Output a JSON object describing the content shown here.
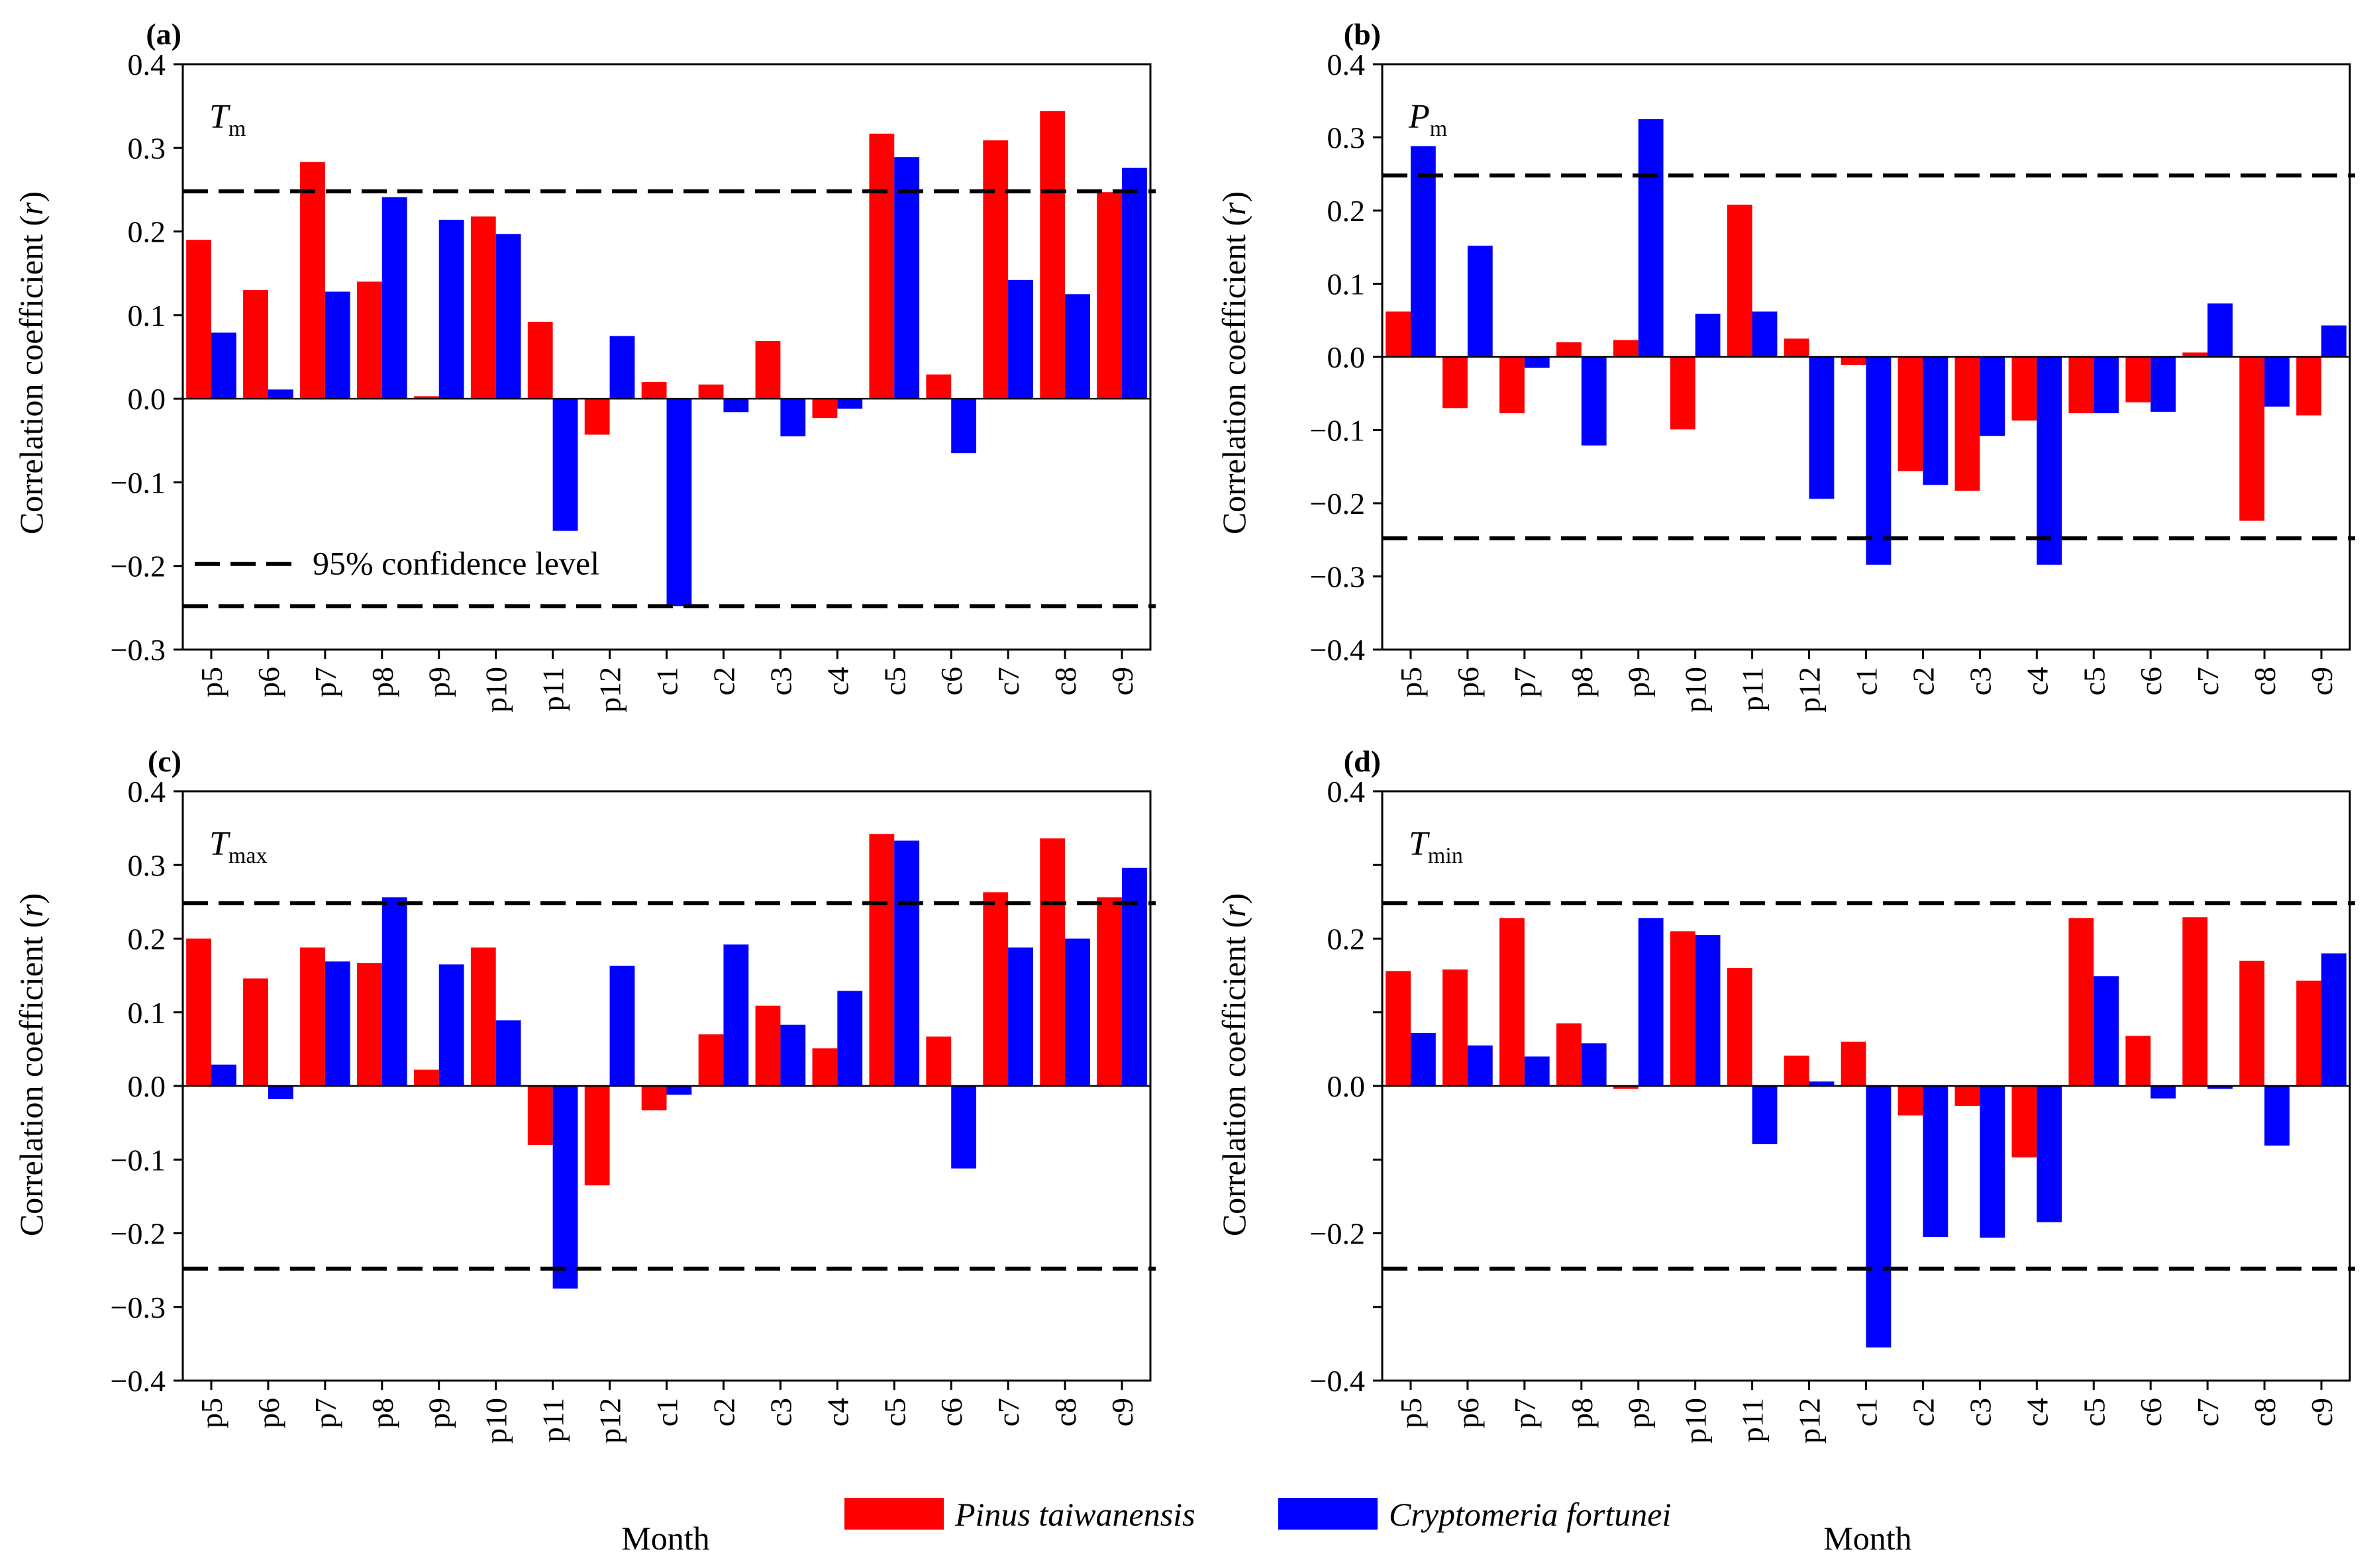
{
  "chart_data": [
    {
      "type": "bar",
      "panel": "(a)",
      "variable": {
        "symbol": "T",
        "subscript": "m"
      },
      "categories": [
        "p5",
        "p6",
        "p7",
        "p8",
        "p9",
        "p10",
        "p11",
        "p12",
        "c1",
        "c2",
        "c3",
        "c4",
        "c5",
        "c6",
        "c7",
        "c8",
        "c9"
      ],
      "series": [
        {
          "name": "Pinus taiwanensis",
          "color": "#ff0000",
          "values": [
            0.19,
            0.13,
            0.283,
            0.14,
            0.003,
            0.218,
            0.092,
            -0.043,
            0.02,
            0.017,
            0.069,
            -0.023,
            0.317,
            0.029,
            0.309,
            0.344,
            0.247
          ]
        },
        {
          "name": "Cryptomeria fortunei",
          "color": "#0000ff",
          "values": [
            0.079,
            0.011,
            0.128,
            0.241,
            0.214,
            0.197,
            -0.158,
            0.075,
            -0.248,
            -0.016,
            -0.045,
            -0.012,
            0.289,
            -0.065,
            0.142,
            0.125,
            0.276
          ]
        }
      ],
      "ylim": [
        -0.3,
        0.4
      ],
      "yticks": [
        "0.4",
        "0.3",
        "0.2",
        "0.1",
        "0.0",
        "-0.1",
        "-0.2",
        "-0.3"
      ],
      "confidence_level": 0.248,
      "annotation": "95% confidence level",
      "ylabel": "Correlation coefficient (r)",
      "xlabel": ""
    },
    {
      "type": "bar",
      "panel": "(b)",
      "variable": {
        "symbol": "P",
        "subscript": "m"
      },
      "categories": [
        "p5",
        "p6",
        "p7",
        "p8",
        "p9",
        "p10",
        "p11",
        "p12",
        "c1",
        "c2",
        "c3",
        "c4",
        "c5",
        "c6",
        "c7",
        "c8",
        "c9"
      ],
      "series": [
        {
          "name": "Pinus taiwanensis",
          "color": "#ff0000",
          "values": [
            0.062,
            -0.07,
            -0.077,
            0.02,
            0.023,
            -0.099,
            0.208,
            0.025,
            -0.011,
            -0.156,
            -0.183,
            -0.087,
            -0.077,
            -0.062,
            0.006,
            -0.224,
            -0.08
          ]
        },
        {
          "name": "Cryptomeria fortunei",
          "color": "#0000ff",
          "values": [
            0.288,
            0.152,
            -0.015,
            -0.121,
            0.325,
            0.059,
            0.062,
            -0.194,
            -0.284,
            -0.175,
            -0.108,
            -0.284,
            -0.077,
            -0.075,
            0.073,
            -0.068,
            0.043
          ]
        }
      ],
      "ylim": [
        -0.4,
        0.4
      ],
      "yticks": [
        "0.4",
        "0.3",
        "0.2",
        "0.1",
        "0.0",
        "-0.1",
        "-0.2",
        "-0.3",
        "-0.4"
      ],
      "confidence_level": 0.248,
      "ylabel": "",
      "xlabel": ""
    },
    {
      "type": "bar",
      "panel": "(c)",
      "variable": {
        "symbol": "T",
        "subscript": "max"
      },
      "categories": [
        "p5",
        "p6",
        "p7",
        "p8",
        "p9",
        "p10",
        "p11",
        "p12",
        "c1",
        "c2",
        "c3",
        "c4",
        "c5",
        "c6",
        "c7",
        "c8",
        "c9"
      ],
      "series": [
        {
          "name": "Pinus taiwanensis",
          "color": "#ff0000",
          "values": [
            0.2,
            0.146,
            0.188,
            0.167,
            0.022,
            0.188,
            -0.08,
            -0.135,
            -0.033,
            0.07,
            0.109,
            0.051,
            0.342,
            0.067,
            0.263,
            0.336,
            0.256
          ]
        },
        {
          "name": "Cryptomeria fortunei",
          "color": "#0000ff",
          "values": [
            0.029,
            -0.018,
            0.169,
            0.256,
            0.165,
            0.089,
            -0.275,
            0.163,
            -0.012,
            0.192,
            0.083,
            0.129,
            0.333,
            -0.112,
            0.188,
            0.2,
            0.296
          ]
        }
      ],
      "ylim": [
        -0.4,
        0.4
      ],
      "yticks": [
        "0.4",
        "0.3",
        "0.2",
        "0.1",
        "0.0",
        "-0.1",
        "-0.2",
        "-0.3",
        "-0.4"
      ],
      "confidence_level": 0.248,
      "ylabel": "Correlation coefficient (r)",
      "xlabel": "Month"
    },
    {
      "type": "bar",
      "panel": "(d)",
      "variable": {
        "symbol": "T",
        "subscript": "min"
      },
      "categories": [
        "p5",
        "p6",
        "p7",
        "p8",
        "p9",
        "p10",
        "p11",
        "p12",
        "c1",
        "c2",
        "c3",
        "c4",
        "c5",
        "c6",
        "c7",
        "c8",
        "c9"
      ],
      "series": [
        {
          "name": "Pinus taiwanensis",
          "color": "#ff0000",
          "values": [
            0.156,
            0.158,
            0.228,
            0.085,
            -0.004,
            0.21,
            0.16,
            0.041,
            0.06,
            -0.04,
            -0.027,
            -0.097,
            0.228,
            0.068,
            0.229,
            0.17,
            0.143
          ]
        },
        {
          "name": "Cryptomeria fortunei",
          "color": "#0000ff",
          "values": [
            0.072,
            0.055,
            0.04,
            0.058,
            0.228,
            0.205,
            -0.079,
            0.006,
            -0.355,
            -0.205,
            -0.206,
            -0.185,
            0.149,
            -0.017,
            -0.004,
            -0.081,
            0.18
          ]
        }
      ],
      "ylim": [
        -0.4,
        0.4
      ],
      "yticks": [
        "0.4",
        "",
        "0.2",
        "",
        "0.0",
        "",
        "-0.2",
        "",
        "-0.4"
      ],
      "confidence_level": 0.248,
      "ylabel": "Correlation coefficient (r)",
      "xlabel": "Month"
    }
  ],
  "legend": {
    "items": [
      {
        "label": "Pinus taiwanensis",
        "color": "#ff0000"
      },
      {
        "label": "Cryptomeria fortunei",
        "color": "#0000ff"
      }
    ]
  }
}
